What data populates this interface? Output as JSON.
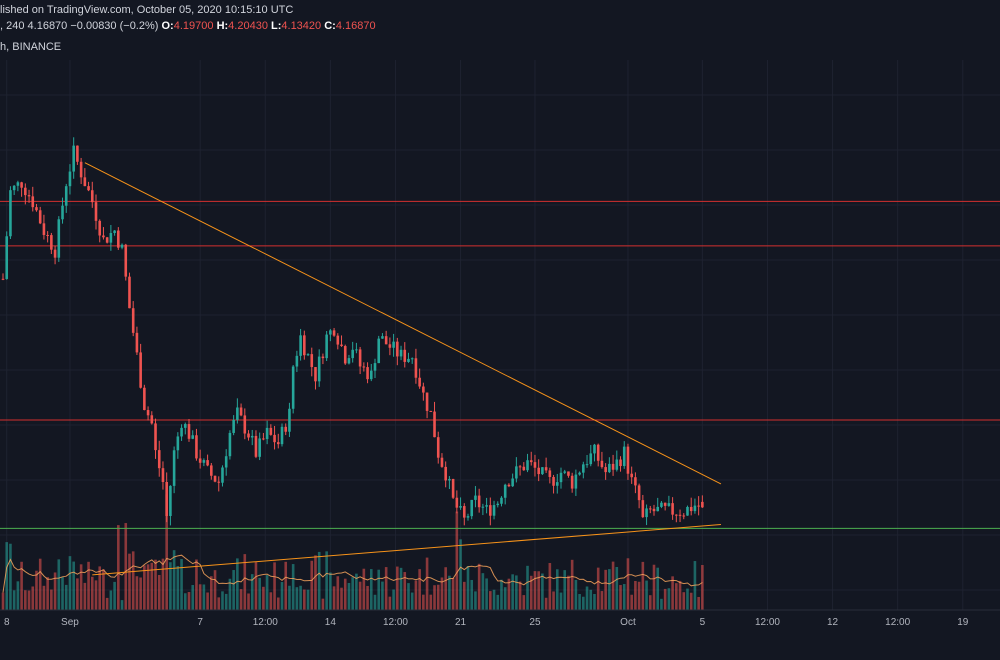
{
  "header": {
    "published": "lished on TradingView.com, October 05, 2020 10:15:10 UTC",
    "interval": ", 240",
    "last_price": "4.16870",
    "change": "−0.00830 (−0.2%)",
    "open_label": "O:",
    "open_value": "4.19700",
    "high_label": "H:",
    "high_value": "4.20430",
    "low_label": "L:",
    "low_value": "4.13420",
    "close_label": "C:",
    "close_value": "4.16870",
    "exchange": "h, BINANCE"
  },
  "colors": {
    "background": "#131722",
    "up": "#26a69a",
    "down": "#ef5350",
    "resistance": "#d32f2f",
    "support": "#4caf50",
    "trendline": "#f7931a",
    "volume_ma": "#f7a35c"
  },
  "chart_data": {
    "type": "candlestick",
    "x_ticks": [
      {
        "label": "8",
        "t": 1
      },
      {
        "label": "Sep",
        "t": 18
      },
      {
        "label": "7",
        "t": 53
      },
      {
        "label": "12:00",
        "t": 70.5
      },
      {
        "label": "14",
        "t": 88
      },
      {
        "label": "12:00",
        "t": 105.5
      },
      {
        "label": "21",
        "t": 123
      },
      {
        "label": "25",
        "t": 143
      },
      {
        "label": "Oct",
        "t": 168
      },
      {
        "label": "5",
        "t": 188
      },
      {
        "label": "12:00",
        "t": 205.5
      },
      {
        "label": "12",
        "t": 223
      },
      {
        "label": "12:00",
        "t": 240.5
      },
      {
        "label": "19",
        "t": 258
      }
    ],
    "price_range": [
      4.0,
      6.3
    ],
    "horizontal_levels": [
      {
        "kind": "resistance",
        "price": 5.75
      },
      {
        "kind": "resistance",
        "price": 5.52
      },
      {
        "kind": "resistance",
        "price": 4.62
      },
      {
        "kind": "support",
        "price": 4.06
      }
    ],
    "trendlines": [
      {
        "from_t": 22,
        "from_price": 5.95,
        "to_t": 193,
        "to_price": 4.29
      },
      {
        "from_t": 24,
        "from_price": 3.82,
        "to_t": 193,
        "to_price": 4.08
      }
    ],
    "candles_last_shown": {
      "open": 4.197,
      "high": 4.2043,
      "low": 4.1342,
      "close": 4.1687
    },
    "price_path": [
      [
        0,
        5.35
      ],
      [
        2,
        5.8
      ],
      [
        5,
        5.85
      ],
      [
        8,
        5.75
      ],
      [
        11,
        5.6
      ],
      [
        14,
        5.5
      ],
      [
        17,
        5.85
      ],
      [
        19,
        6.0
      ],
      [
        21,
        5.9
      ],
      [
        24,
        5.75
      ],
      [
        27,
        5.55
      ],
      [
        30,
        5.6
      ],
      [
        32,
        5.5
      ],
      [
        34,
        5.2
      ],
      [
        36,
        4.95
      ],
      [
        38,
        4.7
      ],
      [
        40,
        4.6
      ],
      [
        41,
        4.45
      ],
      [
        43,
        4.3
      ],
      [
        44,
        4.12
      ],
      [
        46,
        4.45
      ],
      [
        48,
        4.62
      ],
      [
        50,
        4.55
      ],
      [
        52,
        4.45
      ],
      [
        55,
        4.35
      ],
      [
        58,
        4.3
      ],
      [
        61,
        4.55
      ],
      [
        63,
        4.65
      ],
      [
        66,
        4.55
      ],
      [
        68,
        4.45
      ],
      [
        71,
        4.55
      ],
      [
        74,
        4.5
      ],
      [
        77,
        4.65
      ],
      [
        78,
        4.9
      ],
      [
        80,
        5.05
      ],
      [
        82,
        4.95
      ],
      [
        84,
        4.85
      ],
      [
        87,
        5.05
      ],
      [
        89,
        5.1
      ],
      [
        92,
        4.95
      ],
      [
        94,
        5.0
      ],
      [
        96,
        4.9
      ],
      [
        99,
        4.85
      ],
      [
        101,
        5.05
      ],
      [
        104,
        5.0
      ],
      [
        107,
        4.95
      ],
      [
        110,
        4.95
      ],
      [
        113,
        4.75
      ],
      [
        115,
        4.65
      ],
      [
        117,
        4.45
      ],
      [
        119,
        4.35
      ],
      [
        121,
        4.2
      ],
      [
        124,
        4.1
      ],
      [
        127,
        4.2
      ],
      [
        130,
        4.15
      ],
      [
        133,
        4.2
      ],
      [
        135,
        4.3
      ],
      [
        138,
        4.35
      ],
      [
        141,
        4.4
      ],
      [
        144,
        4.35
      ],
      [
        147,
        4.3
      ],
      [
        150,
        4.35
      ],
      [
        153,
        4.3
      ],
      [
        156,
        4.4
      ],
      [
        159,
        4.45
      ],
      [
        162,
        4.35
      ],
      [
        165,
        4.4
      ],
      [
        167,
        4.45
      ],
      [
        169,
        4.3
      ],
      [
        171,
        4.2
      ],
      [
        172,
        4.1
      ],
      [
        174,
        4.15
      ],
      [
        177,
        4.15
      ],
      [
        180,
        4.15
      ],
      [
        183,
        4.15
      ],
      [
        186,
        4.18
      ],
      [
        188,
        4.17
      ]
    ]
  }
}
